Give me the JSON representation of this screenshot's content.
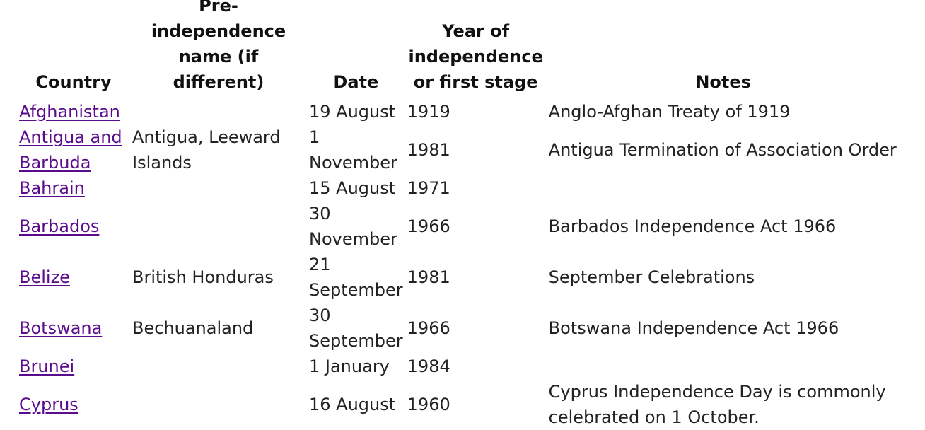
{
  "table": {
    "headers": [
      "Country",
      "Pre-independence name (if different)",
      "Date",
      "Year of independence or first stage",
      "Notes"
    ],
    "rows": [
      {
        "country": "Afghanistan",
        "pre_name": "",
        "date": "19 August",
        "year": "1919",
        "notes": "Anglo-Afghan Treaty of 1919"
      },
      {
        "country": "Antigua and Barbuda",
        "pre_name": "Antigua, Leeward Islands",
        "date": "1 November",
        "year": "1981",
        "notes": "Antigua Termination of Association Order"
      },
      {
        "country": "Bahrain",
        "pre_name": "",
        "date": "15 August",
        "year": "1971",
        "notes": ""
      },
      {
        "country": "Barbados",
        "pre_name": "",
        "date": "30 November",
        "year": "1966",
        "notes": "Barbados Independence Act 1966"
      },
      {
        "country": "Belize",
        "pre_name": "British Honduras",
        "date": "21 September",
        "year": "1981",
        "notes": "September Celebrations"
      },
      {
        "country": "Botswana",
        "pre_name": "Bechuanaland",
        "date": "30 September",
        "year": "1966",
        "notes": "Botswana Independence Act 1966"
      },
      {
        "country": "Brunei",
        "pre_name": "",
        "date": "1 January",
        "year": "1984",
        "notes": ""
      },
      {
        "country": "Cyprus",
        "pre_name": "",
        "date": "16 August",
        "year": "1960",
        "notes": "Cyprus Independence Day is commonly celebrated on 1 October."
      }
    ]
  },
  "colors": {
    "link": "#5a0c8c",
    "text": "#222222",
    "background": "#ffffff"
  }
}
